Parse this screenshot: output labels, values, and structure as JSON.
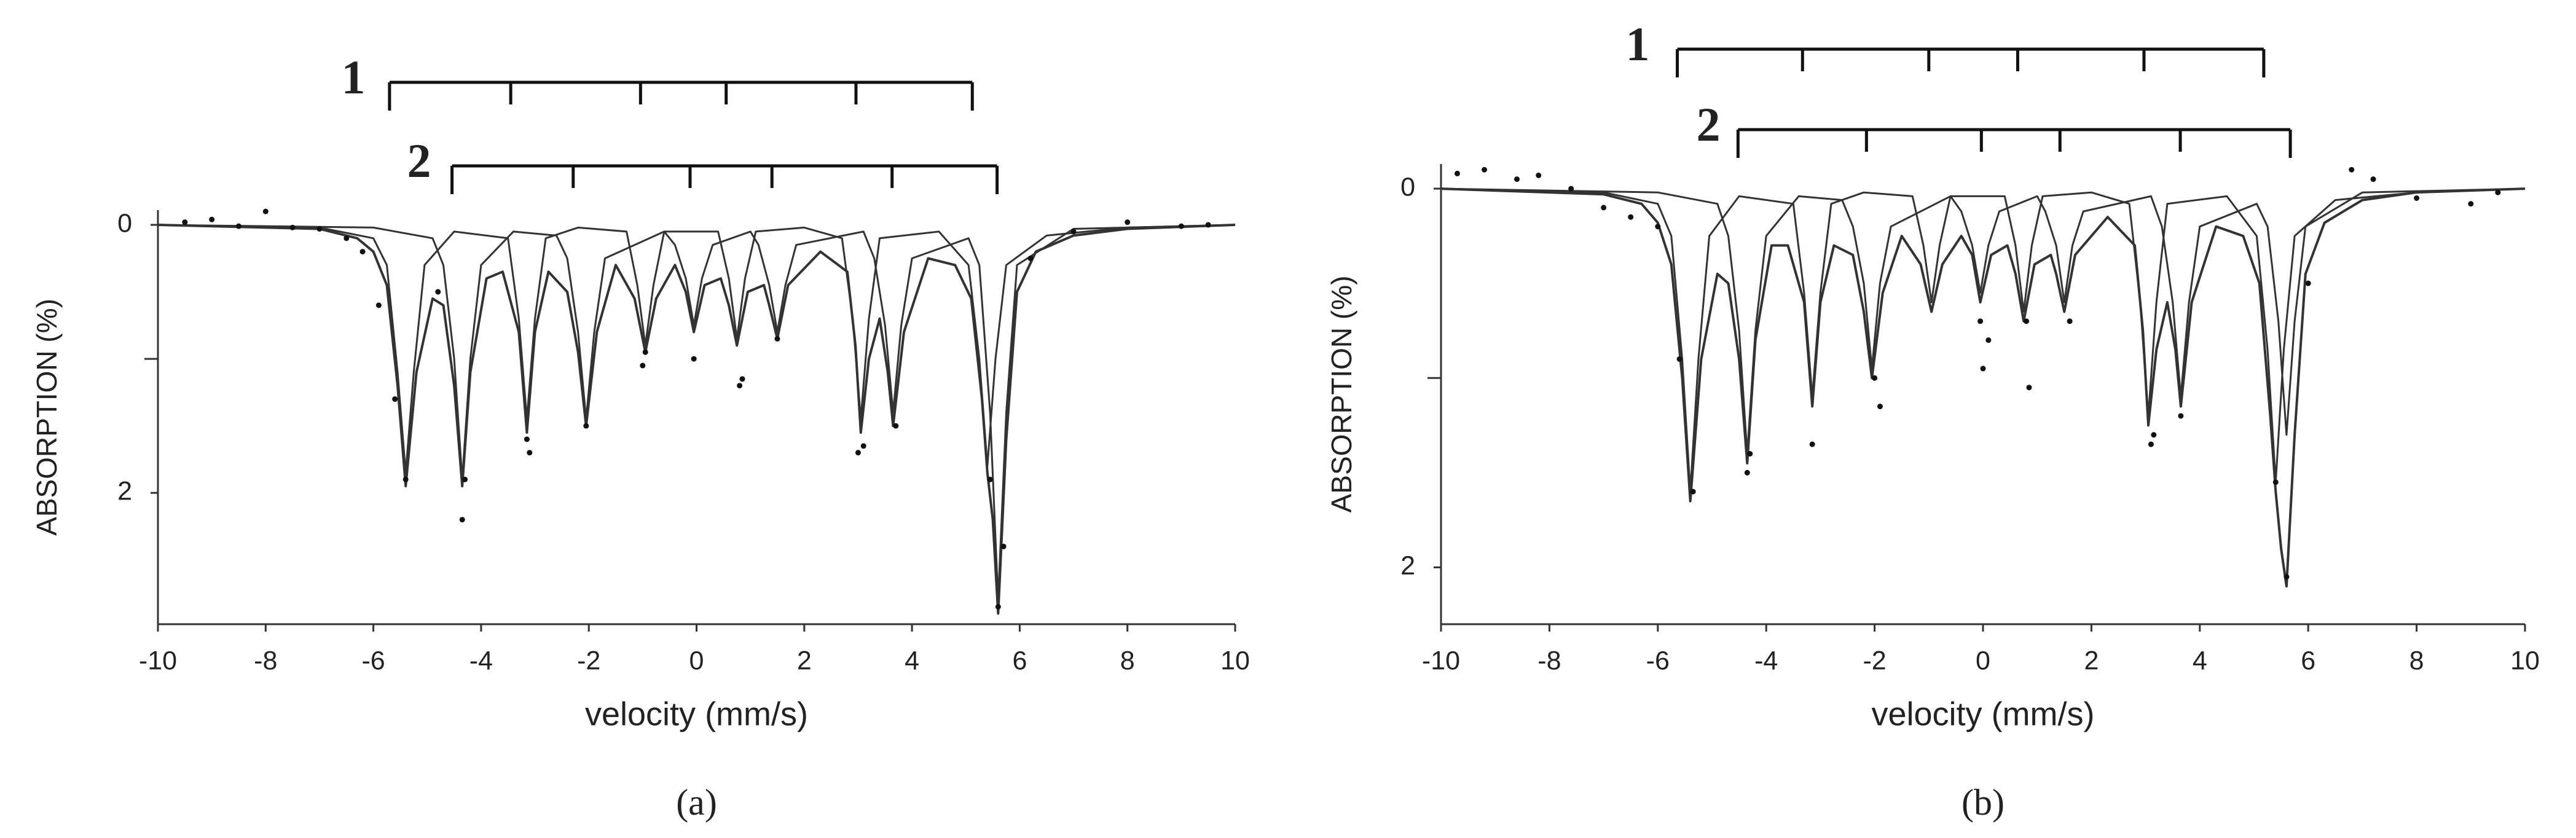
{
  "chart_data": [
    {
      "type": "line",
      "panel_label": "(a)",
      "xlabel": "velocity (mm/s)",
      "ylabel": "ABSORPTION (%)",
      "xlim": [
        -10,
        10
      ],
      "xticks": [
        -10,
        -8,
        -6,
        -4,
        -2,
        0,
        2,
        4,
        6,
        8,
        10
      ],
      "ylim": [
        -0.11,
        2.98
      ],
      "y_inverted": true,
      "yticks": [
        0,
        2
      ],
      "yminor_ticks": [
        1
      ],
      "color": "#333333",
      "sextets": [
        {
          "label": "1",
          "positions": [
            -5.7,
            -3.45,
            -1.04,
            0.55,
            2.96,
            5.12
          ]
        },
        {
          "label": "2",
          "positions": [
            -4.54,
            -2.29,
            -0.12,
            1.4,
            3.63,
            5.58
          ]
        }
      ],
      "series": [
        {
          "x": [
            -10,
            -7,
            -6.3,
            -6,
            -5.75,
            -5.55,
            -5.4,
            -5.2,
            -4.9,
            -4.7,
            -4.5,
            -4.35,
            -4.2,
            -3.9,
            -3.6,
            -3.3,
            -3.15,
            -3.0,
            -2.75,
            -2.4,
            -2.2,
            -2.05,
            -1.85,
            -1.5,
            -1.15,
            -0.95,
            -0.75,
            -0.4,
            -0.2,
            -0.05,
            0.15,
            0.45,
            0.6,
            0.75,
            0.95,
            1.25,
            1.35,
            1.5,
            1.7,
            2.3,
            2.8,
            2.95,
            3.05,
            3.2,
            3.4,
            3.55,
            3.65,
            3.85,
            4.3,
            4.8,
            5.1,
            5.3,
            5.4,
            5.5,
            5.6,
            5.75,
            5.95,
            6.3,
            7,
            8,
            10
          ],
          "values": [
            0,
            0.03,
            0.1,
            0.2,
            0.45,
            1.2,
            1.95,
            1.1,
            0.55,
            0.6,
            1.2,
            1.95,
            1.1,
            0.4,
            0.35,
            0.8,
            1.55,
            0.8,
            0.35,
            0.5,
            0.95,
            1.5,
            0.8,
            0.3,
            0.55,
            0.95,
            0.55,
            0.3,
            0.5,
            0.8,
            0.45,
            0.4,
            0.6,
            0.9,
            0.5,
            0.45,
            0.6,
            0.85,
            0.45,
            0.2,
            0.35,
            0.9,
            1.55,
            1.0,
            0.7,
            1.1,
            1.5,
            0.8,
            0.25,
            0.3,
            0.55,
            1.3,
            1.85,
            2.2,
            2.9,
            1.6,
            0.5,
            0.2,
            0.08,
            0.03,
            0
          ]
        },
        {
          "x": [
            -10,
            -7,
            -6,
            -5.75,
            -5.55,
            -5.4,
            -5.25,
            -5.05,
            -4.5,
            -3.5,
            -3.3,
            -3.15,
            -3.0,
            -2.8,
            -2.2,
            -1.3,
            -1.1,
            -0.95,
            -0.8,
            -0.6,
            0.4,
            0.6,
            0.75,
            0.9,
            1.1,
            2,
            2.7,
            2.9,
            3.05,
            3.2,
            3.4,
            4.5,
            5.05,
            5.25,
            5.4,
            5.55,
            5.75,
            6.5,
            8,
            10
          ],
          "values": [
            0,
            0.02,
            0.1,
            0.3,
            1.1,
            1.85,
            1.1,
            0.3,
            0.05,
            0.1,
            0.7,
            1.45,
            0.7,
            0.1,
            0.02,
            0.05,
            0.45,
            0.9,
            0.45,
            0.05,
            0.05,
            0.4,
            0.85,
            0.4,
            0.05,
            0.02,
            0.1,
            0.7,
            1.45,
            0.7,
            0.1,
            0.05,
            0.3,
            1.0,
            1.8,
            1.0,
            0.3,
            0.08,
            0.02,
            0
          ]
        },
        {
          "x": [
            -10,
            -6,
            -4.9,
            -4.7,
            -4.5,
            -4.35,
            -4.2,
            -4.0,
            -3.4,
            -2.6,
            -2.4,
            -2.2,
            -2.05,
            -1.9,
            -1.7,
            -0.6,
            -0.4,
            -0.2,
            -0.05,
            0.1,
            0.3,
            1.0,
            1.15,
            1.35,
            1.5,
            1.65,
            1.85,
            3.1,
            3.3,
            3.5,
            3.65,
            3.8,
            4.0,
            5.05,
            5.25,
            5.45,
            5.6,
            5.75,
            5.95,
            7,
            10
          ],
          "values": [
            0,
            0.02,
            0.1,
            0.3,
            1.0,
            1.9,
            1.0,
            0.3,
            0.05,
            0.08,
            0.25,
            0.8,
            1.45,
            0.8,
            0.25,
            0.05,
            0.15,
            0.4,
            0.75,
            0.4,
            0.15,
            0.05,
            0.15,
            0.45,
            0.8,
            0.45,
            0.15,
            0.05,
            0.25,
            0.75,
            1.4,
            0.75,
            0.25,
            0.1,
            0.3,
            1.4,
            2.8,
            1.4,
            0.3,
            0.03,
            0
          ]
        }
      ],
      "points": {
        "x": [
          -9.5,
          -9,
          -8.5,
          -8,
          -7.5,
          -7,
          -6.5,
          -6.2,
          -5.9,
          -5.6,
          -5.4,
          -4.8,
          -4.35,
          -4.3,
          -3.15,
          -3.1,
          -2.05,
          -1.0,
          -0.95,
          -0.05,
          0.8,
          0.85,
          1.5,
          3.0,
          3.1,
          3.7,
          5.45,
          5.6,
          5.7,
          6.2,
          7,
          8,
          9,
          9.5
        ],
        "values": [
          -0.02,
          -0.04,
          0.01,
          -0.1,
          0.02,
          0.03,
          0.1,
          0.2,
          0.6,
          1.3,
          1.9,
          0.5,
          2.2,
          1.9,
          1.6,
          1.7,
          1.5,
          1.05,
          0.95,
          1.0,
          1.2,
          1.15,
          0.85,
          1.7,
          1.65,
          1.5,
          1.9,
          2.85,
          2.4,
          0.25,
          0.05,
          -0.02,
          0.01,
          0.0
        ]
      }
    },
    {
      "type": "line",
      "panel_label": "(b)",
      "xlabel": "velocity (mm/s)",
      "ylabel": "ABSORPTION (%)",
      "xlim": [
        -10,
        10
      ],
      "xticks": [
        -10,
        -8,
        -6,
        -4,
        -2,
        0,
        2,
        4,
        6,
        8,
        10
      ],
      "ylim": [
        -0.13,
        2.3
      ],
      "y_inverted": true,
      "yticks": [
        0,
        2
      ],
      "yminor_ticks": [
        1
      ],
      "color": "#333333",
      "sextets": [
        {
          "label": "1",
          "positions": [
            -5.64,
            -3.33,
            -1.0,
            0.64,
            2.97,
            5.18
          ]
        },
        {
          "label": "2",
          "positions": [
            -4.52,
            -2.15,
            -0.03,
            1.42,
            3.64,
            5.67
          ]
        }
      ],
      "series": [
        {
          "x": [
            -10,
            -7,
            -6.3,
            -6,
            -5.75,
            -5.55,
            -5.4,
            -5.2,
            -4.9,
            -4.7,
            -4.5,
            -4.35,
            -4.2,
            -3.9,
            -3.6,
            -3.3,
            -3.15,
            -3.0,
            -2.75,
            -2.4,
            -2.2,
            -2.05,
            -1.85,
            -1.5,
            -1.15,
            -0.95,
            -0.75,
            -0.4,
            -0.2,
            -0.05,
            0.15,
            0.45,
            0.6,
            0.75,
            0.95,
            1.25,
            1.35,
            1.5,
            1.7,
            2.3,
            2.8,
            2.95,
            3.05,
            3.2,
            3.4,
            3.55,
            3.65,
            3.85,
            4.3,
            4.8,
            5.1,
            5.3,
            5.4,
            5.5,
            5.6,
            5.75,
            5.95,
            6.3,
            7,
            8,
            10
          ],
          "values": [
            0,
            0.03,
            0.08,
            0.18,
            0.4,
            1.0,
            1.65,
            0.9,
            0.45,
            0.5,
            0.9,
            1.45,
            0.8,
            0.3,
            0.3,
            0.6,
            1.15,
            0.6,
            0.3,
            0.35,
            0.65,
            1.0,
            0.55,
            0.25,
            0.4,
            0.65,
            0.4,
            0.25,
            0.35,
            0.6,
            0.35,
            0.3,
            0.45,
            0.7,
            0.4,
            0.35,
            0.45,
            0.65,
            0.35,
            0.15,
            0.3,
            0.75,
            1.25,
            0.85,
            0.6,
            0.85,
            1.15,
            0.6,
            0.2,
            0.25,
            0.5,
            1.2,
            1.6,
            1.9,
            2.1,
            1.3,
            0.45,
            0.18,
            0.06,
            0.02,
            0
          ]
        },
        {
          "x": [
            -10,
            -7,
            -6,
            -5.75,
            -5.55,
            -5.4,
            -5.25,
            -5.05,
            -4.5,
            -3.5,
            -3.3,
            -3.15,
            -3.0,
            -2.8,
            -2.2,
            -1.3,
            -1.1,
            -0.95,
            -0.8,
            -0.6,
            0.4,
            0.6,
            0.75,
            0.9,
            1.1,
            2,
            2.7,
            2.9,
            3.05,
            3.2,
            3.4,
            4.5,
            5.05,
            5.25,
            5.4,
            5.55,
            5.75,
            6.5,
            8,
            10
          ],
          "values": [
            0,
            0.02,
            0.08,
            0.25,
            0.9,
            1.6,
            0.9,
            0.25,
            0.04,
            0.08,
            0.55,
            1.1,
            0.55,
            0.08,
            0.02,
            0.04,
            0.3,
            0.6,
            0.3,
            0.04,
            0.04,
            0.3,
            0.65,
            0.3,
            0.04,
            0.02,
            0.08,
            0.6,
            1.2,
            0.6,
            0.08,
            0.04,
            0.25,
            0.85,
            1.55,
            0.85,
            0.25,
            0.06,
            0.02,
            0
          ]
        },
        {
          "x": [
            -10,
            -6,
            -4.9,
            -4.7,
            -4.5,
            -4.35,
            -4.2,
            -4.0,
            -3.4,
            -2.6,
            -2.4,
            -2.2,
            -2.05,
            -1.9,
            -1.7,
            -0.6,
            -0.4,
            -0.2,
            -0.05,
            0.1,
            0.3,
            1.0,
            1.15,
            1.35,
            1.5,
            1.65,
            1.85,
            3.1,
            3.3,
            3.5,
            3.65,
            3.8,
            4.0,
            5.05,
            5.25,
            5.45,
            5.6,
            5.75,
            5.95,
            7,
            10
          ],
          "values": [
            0,
            0.02,
            0.08,
            0.25,
            0.75,
            1.4,
            0.75,
            0.25,
            0.04,
            0.06,
            0.2,
            0.5,
            0.95,
            0.5,
            0.2,
            0.04,
            0.12,
            0.3,
            0.55,
            0.3,
            0.12,
            0.04,
            0.12,
            0.3,
            0.6,
            0.3,
            0.12,
            0.04,
            0.2,
            0.6,
            1.1,
            0.6,
            0.2,
            0.08,
            0.2,
            0.7,
            1.3,
            0.7,
            0.2,
            0.02,
            0
          ]
        }
      ],
      "points": {
        "x": [
          -9.7,
          -9.2,
          -8.6,
          -8.2,
          -7.6,
          -7,
          -6.5,
          -6,
          -5.6,
          -5.35,
          -4.35,
          -4.3,
          -3.15,
          -2.0,
          -1.9,
          -0.05,
          0.0,
          0.1,
          0.8,
          0.85,
          1.6,
          3.1,
          3.15,
          3.65,
          5.4,
          5.6,
          6,
          6.8,
          7.2,
          8,
          9,
          9.5
        ],
        "values": [
          -0.08,
          -0.1,
          -0.05,
          -0.07,
          0.0,
          0.1,
          0.15,
          0.2,
          0.9,
          1.6,
          1.5,
          1.4,
          1.35,
          1.0,
          1.15,
          0.7,
          0.95,
          0.8,
          0.7,
          1.05,
          0.7,
          1.35,
          1.3,
          1.2,
          1.55,
          2.05,
          0.5,
          -0.1,
          -0.05,
          0.05,
          0.08,
          0.02
        ]
      }
    }
  ]
}
